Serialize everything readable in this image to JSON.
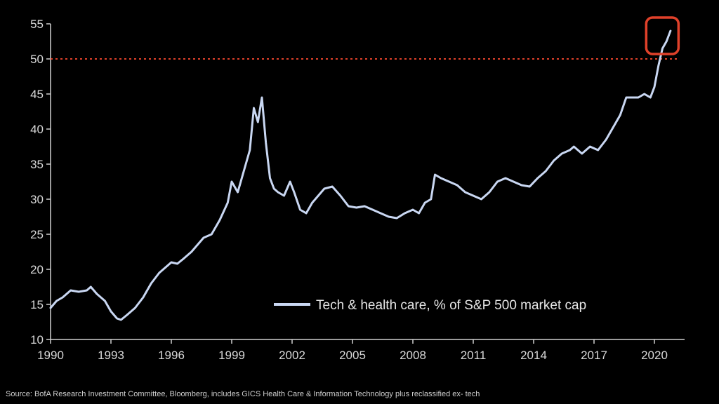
{
  "chart_data": {
    "type": "line",
    "title": "",
    "xlabel": "",
    "ylabel": "",
    "xlim": [
      1990,
      2021.5
    ],
    "ylim": [
      10,
      55
    ],
    "x_ticks": [
      1990,
      1993,
      1996,
      1999,
      2002,
      2005,
      2008,
      2011,
      2014,
      2017,
      2020
    ],
    "y_ticks": [
      10,
      15,
      20,
      25,
      30,
      35,
      40,
      45,
      50,
      55
    ],
    "grid": false,
    "legend_position": "bottom-right",
    "reference_line": {
      "y": 50,
      "style": "dotted",
      "color": "#e0412a"
    },
    "highlight_box": {
      "x": 2020.5,
      "y": 53.5,
      "color": "#e0412a"
    },
    "series": [
      {
        "name": "Tech & health care, % of S&P 500 market cap",
        "color": "#c9d7f2",
        "x": [
          1990.0,
          1990.3,
          1990.6,
          1991.0,
          1991.4,
          1991.8,
          1992.0,
          1992.3,
          1992.7,
          1993.0,
          1993.3,
          1993.5,
          1993.8,
          1994.2,
          1994.6,
          1995.0,
          1995.4,
          1995.8,
          1996.0,
          1996.3,
          1996.6,
          1997.0,
          1997.3,
          1997.6,
          1998.0,
          1998.4,
          1998.8,
          1999.0,
          1999.3,
          1999.6,
          1999.9,
          2000.1,
          2000.3,
          2000.5,
          2000.7,
          2000.9,
          2001.1,
          2001.3,
          2001.6,
          2001.9,
          2002.1,
          2002.4,
          2002.7,
          2003.0,
          2003.3,
          2003.6,
          2004.0,
          2004.4,
          2004.8,
          2005.2,
          2005.6,
          2006.0,
          2006.4,
          2006.8,
          2007.2,
          2007.6,
          2008.0,
          2008.3,
          2008.6,
          2008.9,
          2009.1,
          2009.4,
          2009.8,
          2010.2,
          2010.6,
          2011.0,
          2011.4,
          2011.8,
          2012.2,
          2012.6,
          2013.0,
          2013.4,
          2013.8,
          2014.2,
          2014.6,
          2015.0,
          2015.4,
          2015.8,
          2016.0,
          2016.4,
          2016.8,
          2017.2,
          2017.6,
          2018.0,
          2018.3,
          2018.6,
          2018.9,
          2019.2,
          2019.5,
          2019.8,
          2020.0,
          2020.2,
          2020.4,
          2020.6,
          2020.8
        ],
        "values": [
          14.5,
          15.5,
          16.0,
          17.0,
          16.8,
          17.0,
          17.5,
          16.5,
          15.5,
          14.0,
          13.0,
          12.8,
          13.5,
          14.5,
          16.0,
          18.0,
          19.5,
          20.5,
          21.0,
          20.8,
          21.5,
          22.5,
          23.5,
          24.5,
          25.0,
          27.0,
          29.5,
          32.5,
          31.0,
          34.0,
          37.0,
          43.0,
          41.0,
          44.5,
          38.0,
          33.0,
          31.5,
          31.0,
          30.5,
          32.5,
          31.0,
          28.5,
          28.0,
          29.5,
          30.5,
          31.5,
          31.8,
          30.5,
          29.0,
          28.8,
          29.0,
          28.5,
          28.0,
          27.5,
          27.3,
          28.0,
          28.5,
          28.0,
          29.5,
          30.0,
          33.5,
          33.0,
          32.5,
          32.0,
          31.0,
          30.5,
          30.0,
          31.0,
          32.5,
          33.0,
          32.5,
          32.0,
          31.8,
          33.0,
          34.0,
          35.5,
          36.5,
          37.0,
          37.5,
          36.5,
          37.5,
          37.0,
          38.5,
          40.5,
          42.0,
          44.5,
          44.5,
          44.5,
          45.0,
          44.5,
          46.0,
          49.0,
          51.5,
          52.5,
          54.0
        ]
      }
    ]
  },
  "source_note": "Source:  BofA Research Investment Committee, Bloomberg, includes GICS Health Care & Information Technology plus reclassified ex- tech"
}
